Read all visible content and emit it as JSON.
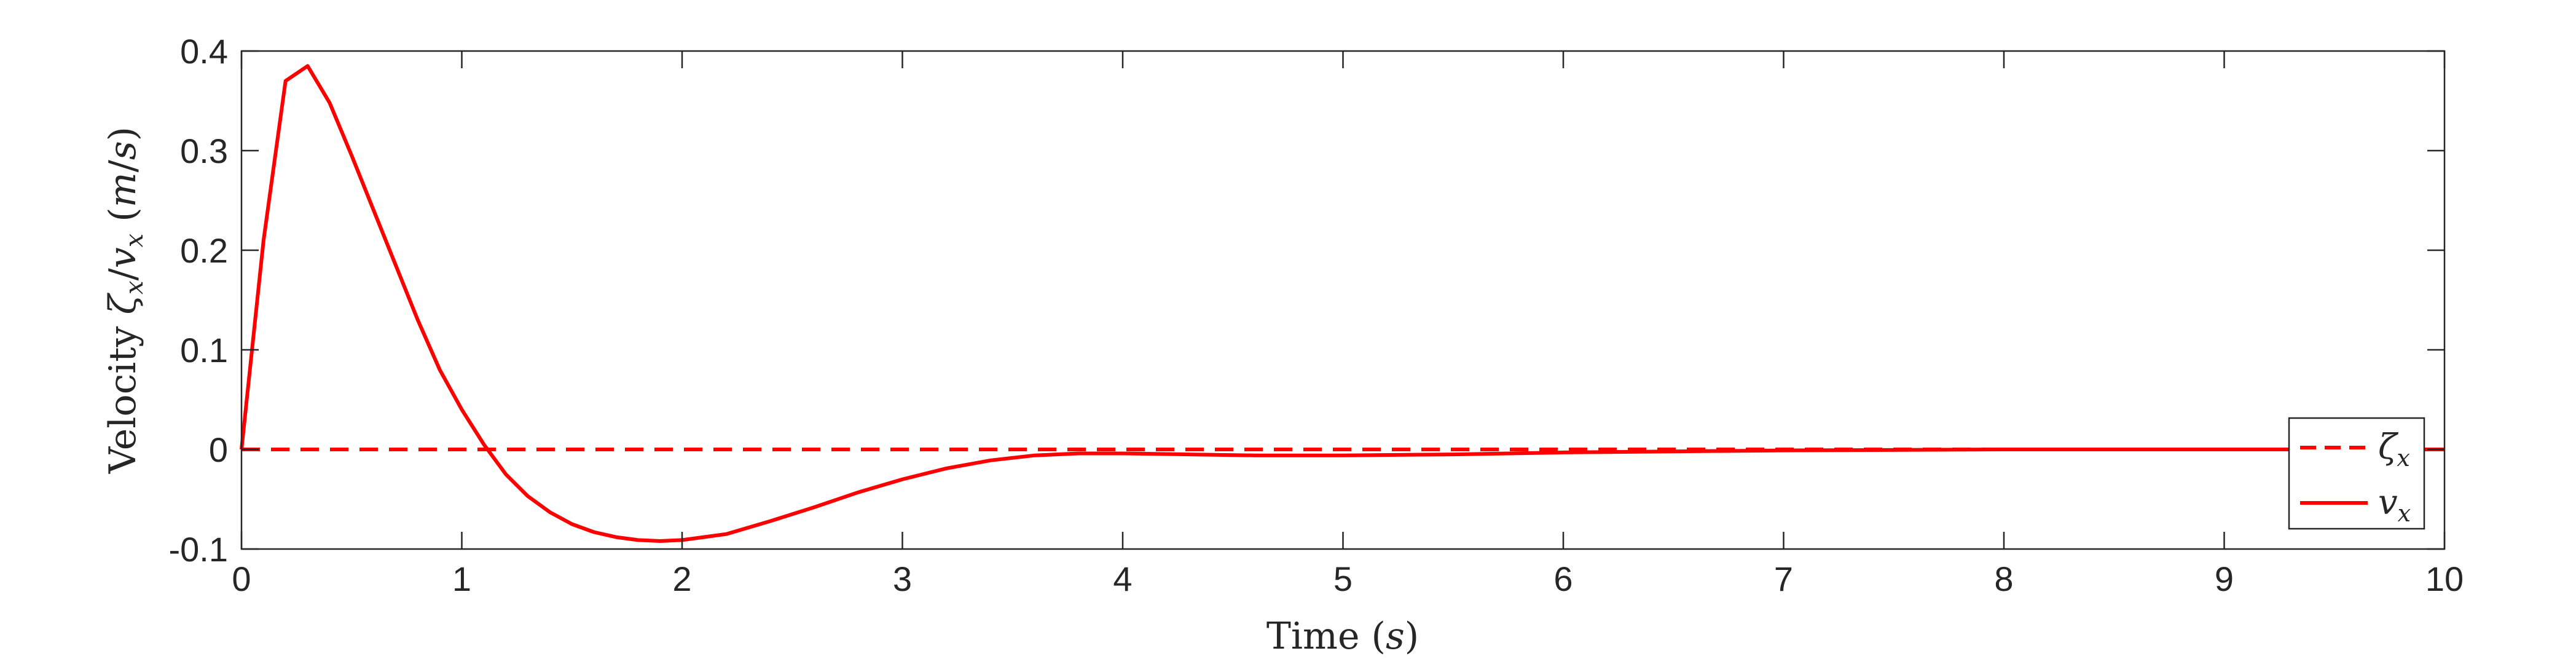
{
  "chart_data": {
    "type": "line",
    "title": "",
    "xlabel": "Time (s)",
    "ylabel": "Velocity ζx/vx (m/s)",
    "xlim": [
      0,
      10
    ],
    "ylim": [
      -0.1,
      0.4
    ],
    "xticks": [
      0,
      1,
      2,
      3,
      4,
      5,
      6,
      7,
      8,
      9,
      10
    ],
    "xtick_labels": [
      "0",
      "1",
      "2",
      "3",
      "4",
      "5",
      "6",
      "7",
      "8",
      "9",
      "10"
    ],
    "yticks": [
      -0.1,
      0,
      0.1,
      0.2,
      0.3,
      0.4
    ],
    "ytick_labels": [
      "-0.1",
      "0",
      "0.1",
      "0.2",
      "0.3",
      "0.4"
    ],
    "grid": false,
    "legend_position": "bottom-right",
    "series": [
      {
        "name": "ζx",
        "style": "dashed",
        "color": "#ff0000",
        "x": [
          0,
          10
        ],
        "y": [
          0,
          0
        ]
      },
      {
        "name": "vx",
        "style": "solid",
        "color": "#ff0000",
        "x": [
          0,
          0.1,
          0.2,
          0.3,
          0.4,
          0.5,
          0.6,
          0.7,
          0.8,
          0.9,
          1.0,
          1.1,
          1.2,
          1.3,
          1.4,
          1.5,
          1.6,
          1.7,
          1.8,
          1.9,
          2.0,
          2.2,
          2.4,
          2.6,
          2.8,
          3.0,
          3.2,
          3.4,
          3.6,
          3.8,
          4.0,
          4.3,
          4.6,
          5.0,
          5.5,
          6.0,
          6.5,
          7.0,
          8.0,
          9.0,
          10.0
        ],
        "y": [
          0,
          0.21,
          0.37,
          0.385,
          0.348,
          0.295,
          0.24,
          0.185,
          0.13,
          0.08,
          0.04,
          0.005,
          -0.025,
          -0.047,
          -0.063,
          -0.075,
          -0.083,
          -0.088,
          -0.091,
          -0.092,
          -0.091,
          -0.085,
          -0.072,
          -0.058,
          -0.043,
          -0.03,
          -0.019,
          -0.011,
          -0.006,
          -0.004,
          -0.004,
          -0.005,
          -0.006,
          -0.006,
          -0.005,
          -0.003,
          -0.002,
          -0.001,
          0,
          0,
          0
        ]
      }
    ]
  }
}
